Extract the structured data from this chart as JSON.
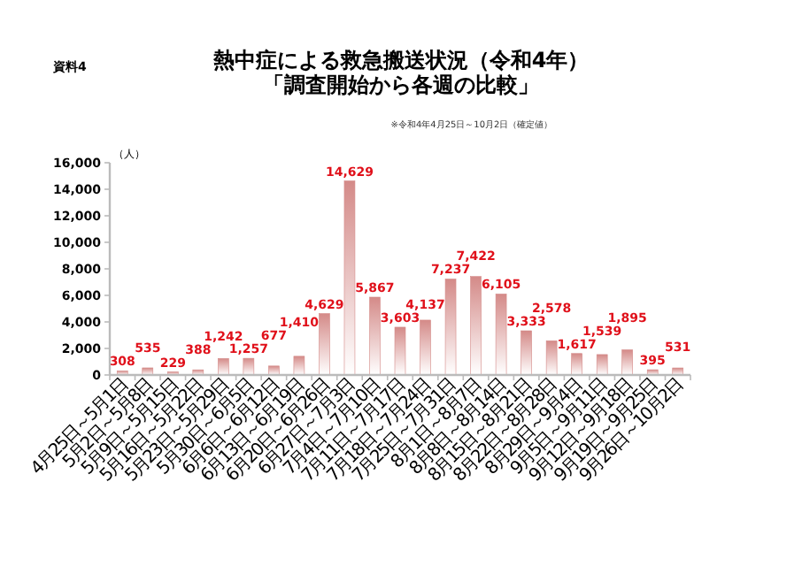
{
  "chart_data": {
    "type": "bar",
    "title": "熱中症による救急搬送状況（令和4年）「調査開始から各週の比較」",
    "subtitle": "※令和4年4月25日～10月2日（確定値）",
    "annotations": [
      "資料4"
    ],
    "ylabel": "（人）",
    "categories": [
      "4月25日～5月1日",
      "5月2日～5月8日",
      "5月9日～5月15日",
      "5月16日～5月22日",
      "5月23日～5月29日",
      "5月30日～6月5日",
      "6月6日～6月12日",
      "6月13日～6月19日",
      "6月20日～6月26日",
      "6月27日～7月3日",
      "7月4日～7月10日",
      "7月11日～7月17日",
      "7月18日～7月24日",
      "7月25日～7月31日",
      "8月1日～8月7日",
      "8月8日～8月14日",
      "8月15日～8月21日",
      "8月22日～8月28日",
      "8月29日～9月4日",
      "9月5日～9月11日",
      "9月12日～9月18日",
      "9月19日～9月25日",
      "9月26日～10月2日"
    ],
    "values": [
      308,
      535,
      229,
      388,
      1242,
      1257,
      677,
      1410,
      4629,
      14629,
      5867,
      3603,
      4137,
      7237,
      7422,
      6105,
      3333,
      2578,
      1617,
      1539,
      1895,
      395,
      531
    ],
    "value_labels": [
      "308",
      "535",
      "229",
      "388",
      "1,242",
      "1,257",
      "677",
      "1,410",
      "4,629",
      "14,629",
      "5,867",
      "3,603",
      "4,137",
      "7,237",
      "7,422",
      "6,105",
      "3,333",
      "2,578",
      "1,617",
      "1,539",
      "1,895",
      "395",
      "531"
    ],
    "color": "#d48a88",
    "ylim": [
      0,
      16000
    ],
    "yticks": [
      {
        "value": 0,
        "label": "0"
      },
      {
        "value": 2000,
        "label": "2,000"
      },
      {
        "value": 4000,
        "label": "4,000"
      },
      {
        "value": 6000,
        "label": "6,000"
      },
      {
        "value": 8000,
        "label": "8,000"
      },
      {
        "value": 10000,
        "label": "10,000"
      },
      {
        "value": 12000,
        "label": "12,000"
      },
      {
        "value": 14000,
        "label": "14,000"
      },
      {
        "value": 16000,
        "label": "16,000"
      }
    ],
    "grid": false
  }
}
